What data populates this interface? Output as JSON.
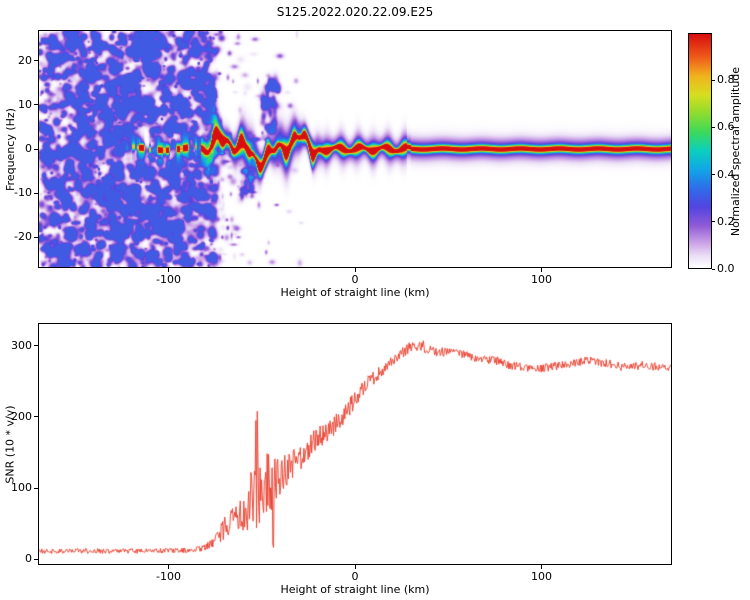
{
  "figure": {
    "title": "S125.2022.020.22.09.E25",
    "background": "#ffffff"
  },
  "chart_data": [
    {
      "id": "spectrogram",
      "type": "heatmap",
      "title": "S125.2022.020.22.09.E25",
      "xlabel": "Height of straight line (km)",
      "ylabel": "Frequency (Hz)",
      "xlim": [
        -170,
        170
      ],
      "ylim": [
        -27,
        27
      ],
      "xticks": [
        -100,
        0,
        100
      ],
      "yticks": [
        -20,
        -10,
        0,
        10,
        20
      ],
      "grid": false,
      "colorbar": {
        "label": "Normalized spectral amplitude",
        "range": [
          0,
          1
        ],
        "ticks": [
          "0.0",
          "0.2",
          "0.4",
          "0.6",
          "0.8"
        ],
        "colormap_stops": [
          [
            0.0,
            "#ffffff"
          ],
          [
            0.05,
            "#ebdff6"
          ],
          [
            0.1,
            "#cfa9e8"
          ],
          [
            0.18,
            "#8f5ad8"
          ],
          [
            0.26,
            "#5345e0"
          ],
          [
            0.34,
            "#2f6ee8"
          ],
          [
            0.42,
            "#12a6e6"
          ],
          [
            0.5,
            "#0ccfc0"
          ],
          [
            0.58,
            "#3cd95c"
          ],
          [
            0.66,
            "#8cdc30"
          ],
          [
            0.74,
            "#d6de20"
          ],
          [
            0.82,
            "#f0b41e"
          ],
          [
            0.9,
            "#ef5e1a"
          ],
          [
            1.0,
            "#d80f10"
          ]
        ]
      },
      "content": {
        "noise_region_x": [
          -170,
          -75
        ],
        "signal_band_center_hz": 0,
        "band_segments": [
          {
            "x": [
              -122,
              -83
            ],
            "style": "intermittent-thin-dotted"
          },
          {
            "x": [
              -83,
              -20
            ],
            "style": "wavy-wide-high-amplitude"
          },
          {
            "x": [
              -20,
              170
            ],
            "style": "straight-thin-continuous"
          }
        ]
      }
    },
    {
      "id": "snr",
      "type": "line",
      "xlabel": "Height of straight line (km)",
      "ylabel": "SNR (10 * v/v)",
      "xlim": [
        -170,
        170
      ],
      "ylim": [
        -8,
        332
      ],
      "xticks": [
        -100,
        0,
        100
      ],
      "yticks": [
        0,
        100,
        200,
        300
      ],
      "grid": false,
      "series": [
        {
          "name": "SNR",
          "color": "#e83a28",
          "envelope_x": [
            -170,
            -140,
            -110,
            -90,
            -82,
            -76,
            -70,
            -64,
            -58,
            -53,
            -49,
            -45,
            -41,
            -36,
            -30,
            -24,
            -18,
            -12,
            -6,
            0,
            6,
            12,
            18,
            24,
            30,
            36,
            45,
            55,
            65,
            75,
            85,
            95,
            105,
            115,
            125,
            135,
            145,
            155,
            165,
            170
          ],
          "envelope_y": [
            10,
            10,
            10,
            11,
            14,
            22,
            40,
            55,
            70,
            95,
            105,
            100,
            115,
            125,
            140,
            160,
            172,
            185,
            200,
            225,
            245,
            258,
            272,
            288,
            300,
            298,
            292,
            290,
            283,
            280,
            272,
            268,
            270,
            274,
            280,
            276,
            270,
            273,
            270,
            268
          ],
          "noise_amp": [
            7,
            7,
            7,
            7,
            8,
            14,
            35,
            45,
            70,
            95,
            100,
            85,
            60,
            50,
            40,
            35,
            32,
            30,
            28,
            26,
            22,
            20,
            18,
            16,
            15,
            14,
            14,
            13,
            13,
            12,
            12,
            12,
            12,
            12,
            12,
            12,
            12,
            12,
            12,
            12
          ]
        }
      ]
    }
  ]
}
